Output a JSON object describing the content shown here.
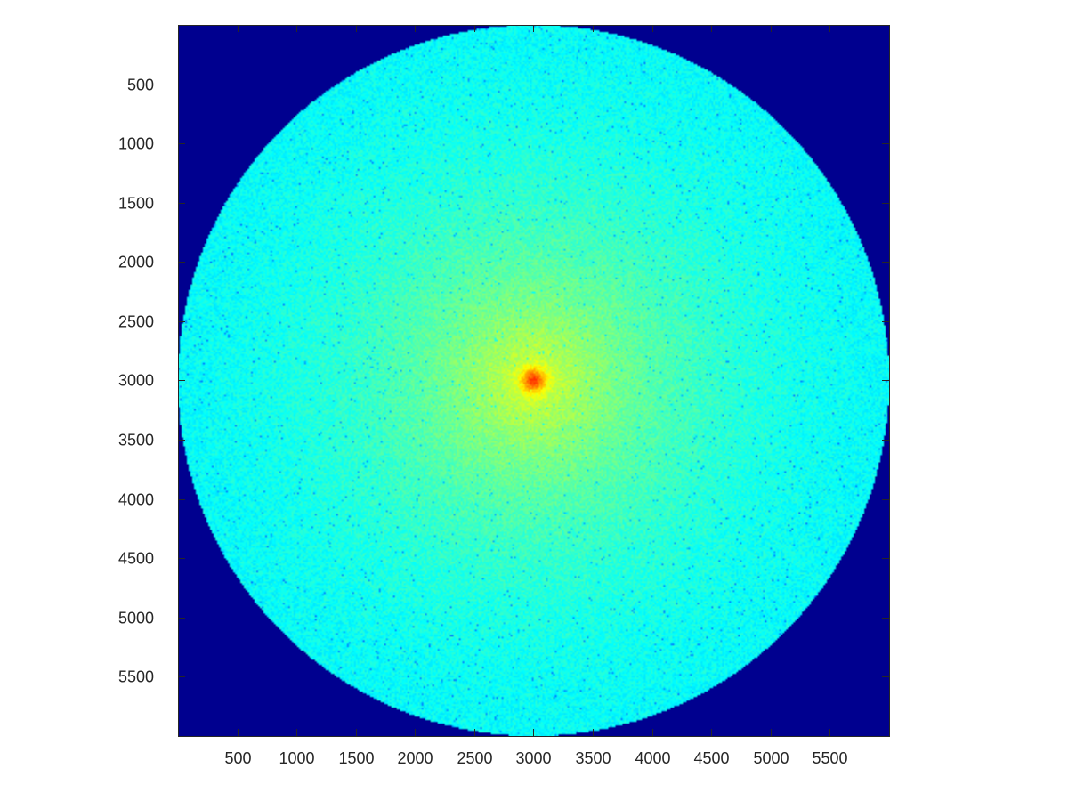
{
  "chart_data": {
    "type": "heatmap",
    "title": "",
    "xlabel": "",
    "ylabel": "",
    "colormap": "jet",
    "xlim": [
      0.5,
      6000.5
    ],
    "ylim": [
      0.5,
      6000.5
    ],
    "y_direction": "reverse",
    "grid": false,
    "legend": "none",
    "aspect": "equal",
    "x_ticks": [
      500,
      1000,
      1500,
      2000,
      2500,
      3000,
      3500,
      4000,
      4500,
      5000,
      5500
    ],
    "y_ticks": [
      500,
      1000,
      1500,
      2000,
      2500,
      3000,
      3500,
      4000,
      4500,
      5000,
      5500
    ],
    "x_tick_labels": [
      "500",
      "1000",
      "1500",
      "2000",
      "2500",
      "3000",
      "3500",
      "4000",
      "4500",
      "5000",
      "5500"
    ],
    "y_tick_labels": [
      "500",
      "1000",
      "1500",
      "2000",
      "2500",
      "3000",
      "3500",
      "4000",
      "4500",
      "5000",
      "5500"
    ],
    "features": {
      "disk_center": [
        3000,
        3000
      ],
      "disk_radius": 3000,
      "background_color": "#00008f",
      "disk_edge_color": "#2ef5cf",
      "mid_color": "#7dfc7e",
      "inner_color": "#f0f520",
      "peak_color": "#ff2a00"
    }
  },
  "colors": {
    "axis": "#262626",
    "background": "#ffffff"
  }
}
